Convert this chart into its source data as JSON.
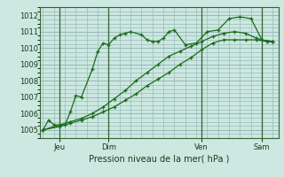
{
  "background_color": "#cce8e0",
  "grid_color": "#99bbbb",
  "line_color": "#1a6b1a",
  "xlabel": "Pression niveau de la mer( hPa )",
  "ylim": [
    1004.5,
    1012.5
  ],
  "yticks": [
    1005,
    1006,
    1007,
    1008,
    1009,
    1010,
    1011,
    1012
  ],
  "day_labels": [
    "Jeu",
    "Dim",
    "Ven",
    "Sam"
  ],
  "day_positions": [
    0.5,
    3.5,
    10.5,
    16.5
  ],
  "vline_positions": [
    1.5,
    6.0,
    14.5,
    20.0
  ],
  "series1_x": [
    0,
    0.5,
    1.0,
    2.0,
    2.5,
    3.0,
    3.5,
    4.5,
    5.0,
    5.5,
    6.0,
    6.5,
    7.0,
    7.5,
    8.0,
    9.0,
    9.5,
    10.0,
    10.5,
    11.0,
    11.5,
    12.0,
    13.0,
    14.0,
    15.0,
    16.0,
    17.0,
    18.0,
    19.0,
    20.0,
    21.0
  ],
  "series1_y": [
    1005.0,
    1005.6,
    1005.3,
    1005.3,
    1006.1,
    1007.1,
    1007.0,
    1008.7,
    1009.8,
    1010.3,
    1010.2,
    1010.6,
    1010.8,
    1010.9,
    1011.0,
    1010.8,
    1010.5,
    1010.4,
    1010.4,
    1010.6,
    1011.0,
    1011.1,
    1010.2,
    1010.3,
    1011.0,
    1011.1,
    1011.8,
    1011.9,
    1011.8,
    1010.5,
    1010.4
  ],
  "series2_x": [
    0,
    1.5,
    2.5,
    3.5,
    4.5,
    5.5,
    6.5,
    7.5,
    8.5,
    9.5,
    10.5,
    11.5,
    12.5,
    13.5,
    14.5,
    15.5,
    16.5,
    17.5,
    18.5,
    19.5,
    20.5,
    21.0
  ],
  "series2_y": [
    1005.0,
    1005.2,
    1005.4,
    1005.6,
    1005.8,
    1006.1,
    1006.4,
    1006.8,
    1007.2,
    1007.7,
    1008.1,
    1008.5,
    1009.0,
    1009.4,
    1009.9,
    1010.3,
    1010.5,
    1010.5,
    1010.5,
    1010.5,
    1010.4,
    1010.4
  ],
  "series3_x": [
    0,
    1.5,
    2.5,
    3.5,
    4.5,
    5.5,
    6.5,
    7.5,
    8.5,
    9.5,
    10.5,
    11.5,
    12.5,
    13.5,
    14.5,
    15.5,
    16.5,
    17.5,
    18.5,
    19.5,
    20.5,
    21.0
  ],
  "series3_y": [
    1005.0,
    1005.3,
    1005.5,
    1005.7,
    1006.0,
    1006.4,
    1006.9,
    1007.4,
    1008.0,
    1008.5,
    1009.0,
    1009.5,
    1009.8,
    1010.1,
    1010.4,
    1010.7,
    1010.9,
    1011.0,
    1010.9,
    1010.6,
    1010.4,
    1010.4
  ],
  "xlim": [
    -0.3,
    21.5
  ]
}
